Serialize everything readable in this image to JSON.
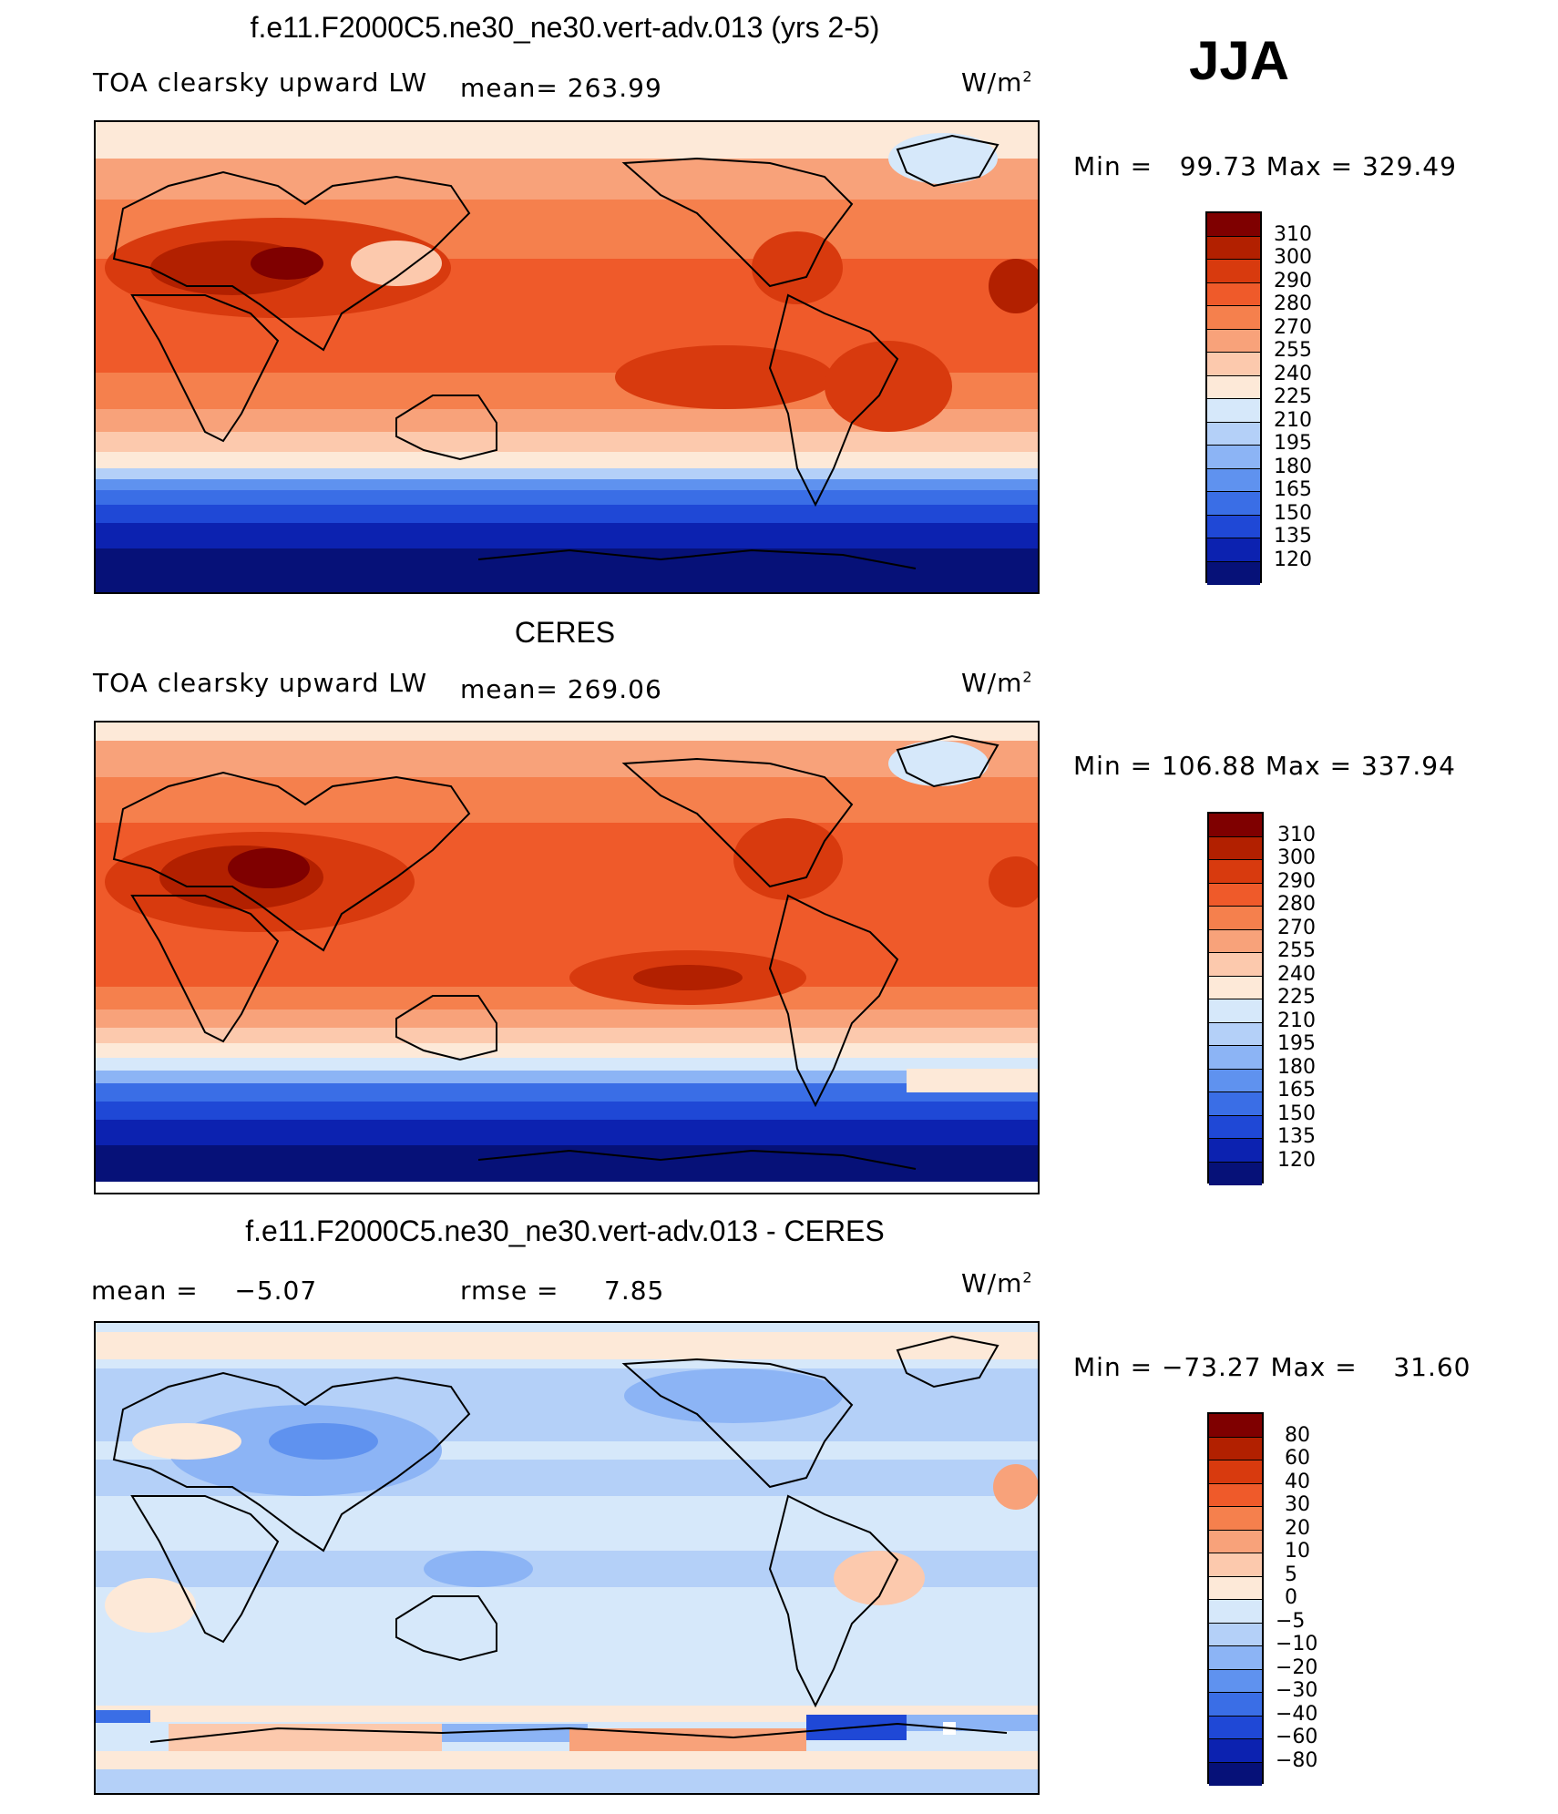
{
  "season": "JJA",
  "units_label": "W/m",
  "units_exp": "2",
  "panels": [
    {
      "title": "f.e11.F2000C5.ne30_ne30.vert-adv.013 (yrs 2-5)",
      "left_label": "TOA clearsky upward LW",
      "stat_label": "mean=",
      "stat_value": "263.99",
      "minmax": "Min =   99.73 Max = 329.49",
      "colorbar": [
        "310",
        "300",
        "290",
        "280",
        "270",
        "255",
        "240",
        "225",
        "210",
        "195",
        "180",
        "165",
        "150",
        "135",
        "120"
      ]
    },
    {
      "title": "CERES",
      "left_label": "TOA clearsky upward LW",
      "stat_label": "mean=",
      "stat_value": "269.06",
      "minmax": "Min = 106.88 Max = 337.94",
      "colorbar": [
        "310",
        "300",
        "290",
        "280",
        "270",
        "255",
        "240",
        "225",
        "210",
        "195",
        "180",
        "165",
        "150",
        "135",
        "120"
      ]
    },
    {
      "title": "f.e11.F2000C5.ne30_ne30.vert-adv.013 - CERES",
      "left_label": "mean =    −5.07",
      "stat_label": "rmse =",
      "stat_value": "7.85",
      "minmax": "Min = −73.27 Max =    31.60",
      "colorbar": [
        "80",
        "60",
        "40",
        "30",
        "20",
        "10",
        "5",
        "0",
        "−5",
        "−10",
        "−20",
        "−30",
        "−40",
        "−60",
        "−80"
      ]
    }
  ],
  "colors": {
    "abs_scale": [
      "#7f0000",
      "#b22000",
      "#d83a0e",
      "#ef5a2a",
      "#f5804d",
      "#f8a27a",
      "#fcc9ad",
      "#fde9d8",
      "#d6e8fa",
      "#b4d0f8",
      "#8cb4f5",
      "#5f92ef",
      "#3a6ee6",
      "#1f48d6",
      "#0c22b0",
      "#061178"
    ],
    "land_outline": "#000000"
  }
}
